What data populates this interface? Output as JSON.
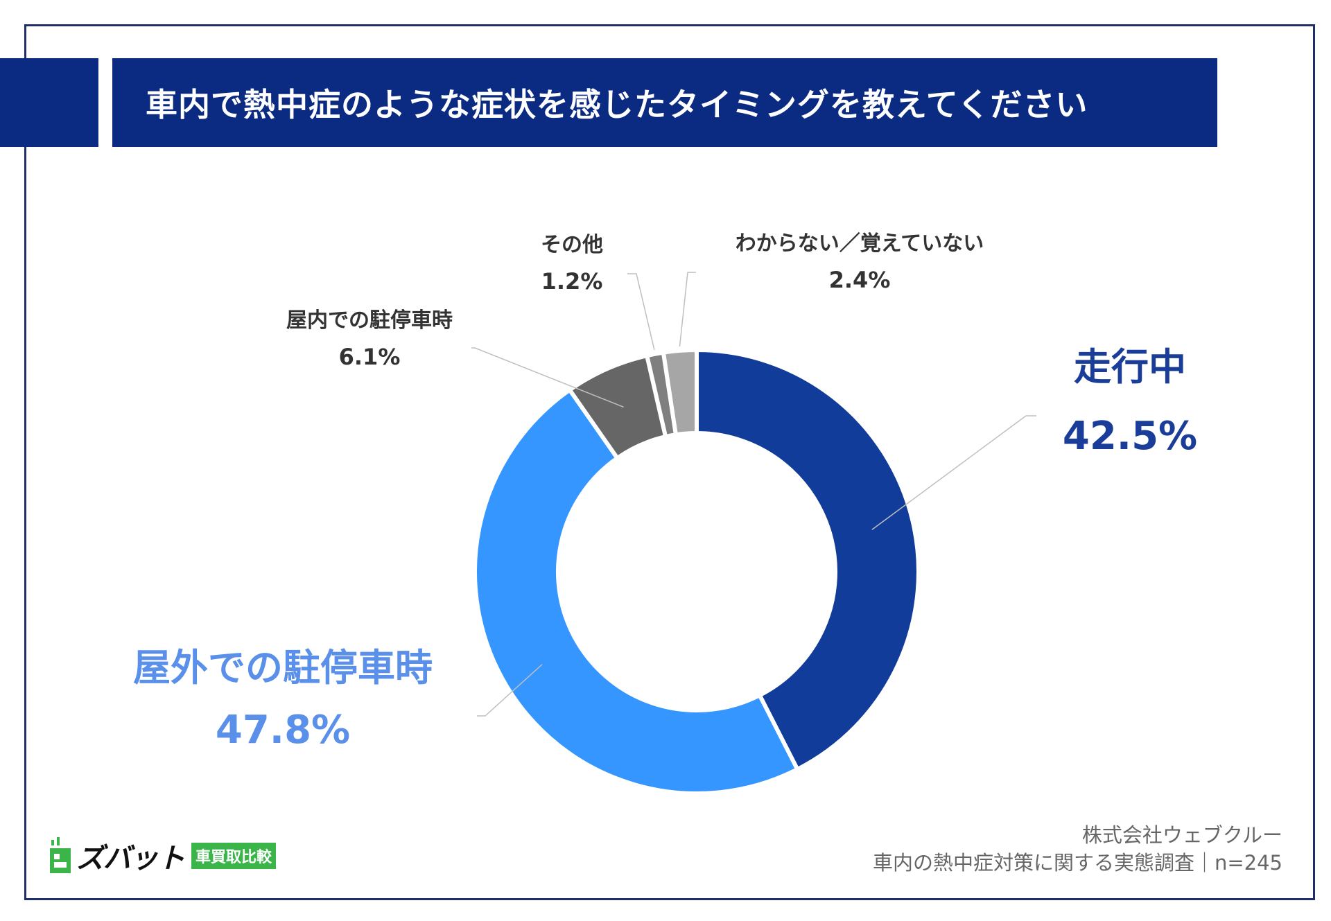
{
  "colors": {
    "frame": "#1f2f6b",
    "title_bg": "#0b2a82",
    "series": [
      "#123c99",
      "#3596ff",
      "#666666",
      "#7f7f7f",
      "#a6a6a6"
    ],
    "label_big": [
      "#1a3d99",
      "#5a90ea"
    ],
    "label_small": "#333333",
    "leader": "#bfbfbf",
    "logo_green": "#3bb54a"
  },
  "title": "車内で熱中症のような症状を感じたタイミングを教えてください",
  "chart_data": {
    "type": "pie",
    "variant": "donut",
    "title": "車内で熱中症のような症状を感じたタイミングを教えてください",
    "unit": "%",
    "slices": [
      {
        "name": "走行中",
        "value": 42.5,
        "label": "42.5%"
      },
      {
        "name": "屋外での駐停車時",
        "value": 47.8,
        "label": "47.8%"
      },
      {
        "name": "屋内での駐停車時",
        "value": 6.1,
        "label": "6.1%"
      },
      {
        "name": "その他",
        "value": 1.2,
        "label": "1.2%"
      },
      {
        "name": "わからない／覚えていない",
        "value": 2.4,
        "label": "2.4%"
      }
    ],
    "start_angle": "12 o'clock",
    "direction": "clockwise"
  },
  "source": {
    "company": "株式会社ウェブクルー",
    "survey": "車内の熱中症対策に関する実態調査｜n=245"
  },
  "logo": {
    "name": "ズバット",
    "badge": "車買取比較"
  }
}
